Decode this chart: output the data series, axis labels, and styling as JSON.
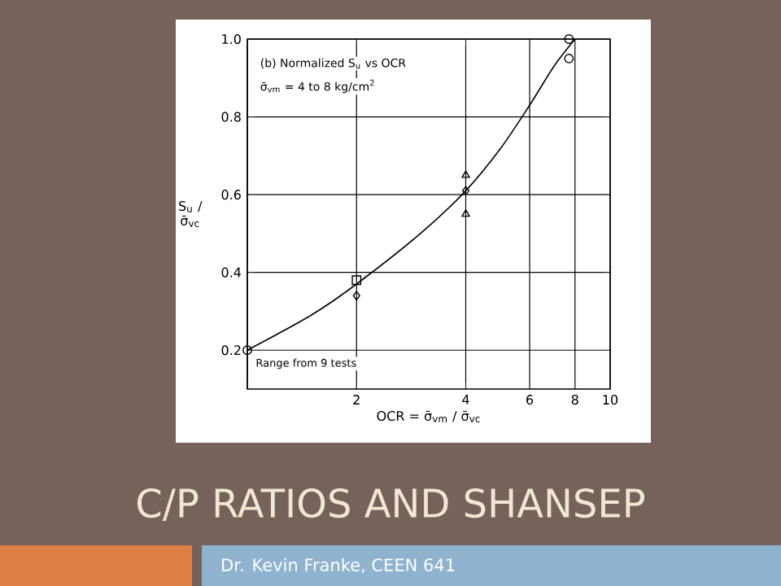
{
  "chart_data": {
    "type": "scatter",
    "title": "C/P RATIOS AND SHANSEP",
    "subtitle": "Dr. Kevin Franke, CEEN 641",
    "xlabel": "OCR = σ̄$_{vm}$ / σ̄$_{vc}$",
    "ylabel": "S$_{u}$ / σ̄$_{vc}$",
    "annotations": [
      "(b) Normalized S$_{u}$ vs OCR",
      "σ̄$_{vm}$ = 4 to 8 kg/cm$^{2}$",
      {
        "text": "Range from 9 tests",
        "x": 1,
        "y": 0.2
      }
    ],
    "log": "x",
    "xlim": [
      1,
      10
    ],
    "ylim": [
      0.1,
      1.0
    ],
    "xticks": [
      {
        "value": 1,
        "label": null
      },
      2,
      4,
      6,
      8,
      10
    ],
    "yticks": [
      0.2,
      0.4,
      0.6,
      0.8,
      {
        "value": 1,
        "label": "1.0"
      }
    ],
    "grid": true,
    "series": [
      {
        "type": "line",
        "color": "#000000",
        "marker": "none",
        "x": [
          1,
          1.5,
          2,
          3,
          4,
          5,
          6,
          7,
          8
        ],
        "values": [
          0.2,
          0.29,
          0.37,
          0.5,
          0.61,
          0.72,
          0.83,
          0.93,
          1.0
        ]
      },
      {
        "color": "#000000",
        "marker": "circle",
        "x": [
          1,
          7.7,
          7.7
        ],
        "values": [
          0.2,
          1.0,
          0.95
        ]
      },
      {
        "color": "#000000",
        "marker": "square",
        "x": [
          2
        ],
        "values": [
          0.38
        ]
      },
      {
        "color": "#000000",
        "marker": "diamond",
        "x": [
          2,
          4
        ],
        "values": [
          0.34,
          0.61
        ]
      },
      {
        "color": "#000000",
        "marker": "triangle",
        "x": [
          4
        ],
        "values": [
          0.65
        ]
      },
      {
        "color": "#000000",
        "marker": "triangle-down",
        "x": [
          4
        ],
        "values": [
          0.55
        ]
      }
    ]
  }
}
